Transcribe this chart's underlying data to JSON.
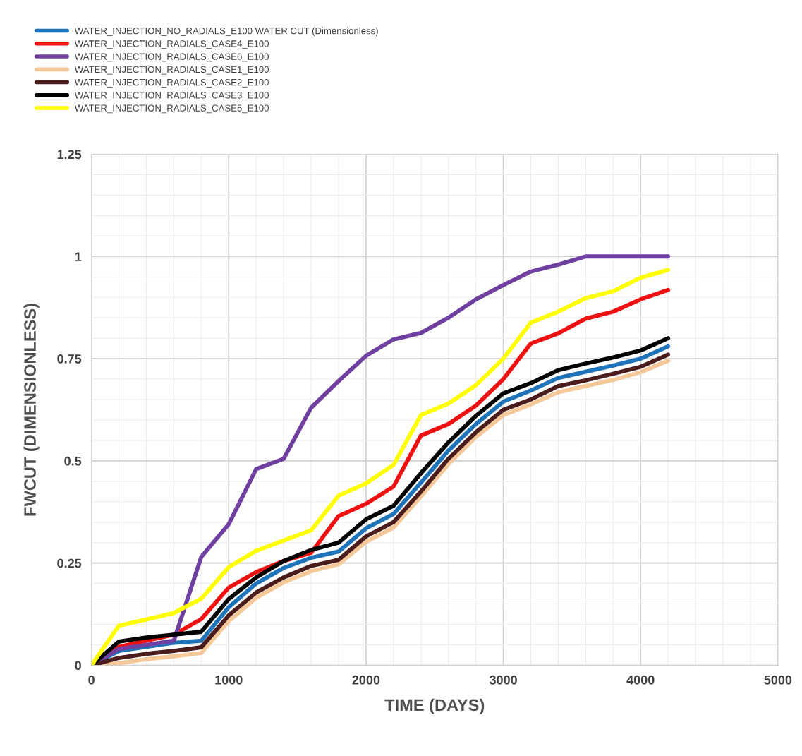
{
  "chart_data": {
    "type": "line",
    "xlabel": "TIME (DAYS)",
    "ylabel": "FWCUT (DIMENSIONLESS)",
    "x": [
      0,
      200,
      400,
      600,
      800,
      1000,
      1200,
      1400,
      1600,
      1800,
      2000,
      2200,
      2400,
      2600,
      2800,
      3000,
      3200,
      3400,
      3600,
      3800,
      4000,
      4200
    ],
    "xlim": [
      0,
      5000
    ],
    "xticks": [
      0,
      1000,
      2000,
      3000,
      4000,
      5000
    ],
    "ylim": [
      0,
      1.25
    ],
    "yticks": [
      0,
      0.25,
      0.5,
      0.75,
      1,
      1.25
    ],
    "grid": true,
    "legend": "top left",
    "marker": "none",
    "line_style": "solid",
    "series": [
      {
        "name": "WATER_INJECTION_NO_RADIALS_E100 WATER CUT (Dimensionless)",
        "color": "#1f73b8",
        "values": [
          0,
          0.035,
          0.045,
          0.055,
          0.06,
          0.142,
          0.2,
          0.238,
          0.263,
          0.278,
          0.335,
          0.37,
          0.447,
          0.525,
          0.59,
          0.645,
          0.672,
          0.703,
          0.718,
          0.733,
          0.75,
          0.78
        ]
      },
      {
        "name": "WATER_INJECTION_RADIALS_CASE4_E100",
        "color": "#ee1111",
        "values": [
          0,
          0.045,
          0.06,
          0.075,
          0.113,
          0.19,
          0.228,
          0.255,
          0.275,
          0.365,
          0.395,
          0.437,
          0.562,
          0.59,
          0.635,
          0.7,
          0.787,
          0.812,
          0.848,
          0.865,
          0.895,
          0.918
        ]
      },
      {
        "name": "WATER_INJECTION_RADIALS_CASE6_E100",
        "color": "#7040a0",
        "values": [
          0,
          0.04,
          0.05,
          0.06,
          0.265,
          0.345,
          0.48,
          0.505,
          0.63,
          0.695,
          0.757,
          0.797,
          0.813,
          0.85,
          0.895,
          0.93,
          0.963,
          0.98,
          1.0,
          1.0,
          1.0,
          1.0
        ]
      },
      {
        "name": "WATER_INJECTION_RADIALS_CASE1_E100",
        "color": "#f5c89a",
        "values": [
          0,
          0.005,
          0.015,
          0.022,
          0.03,
          0.108,
          0.165,
          0.203,
          0.23,
          0.247,
          0.302,
          0.337,
          0.413,
          0.492,
          0.558,
          0.612,
          0.638,
          0.668,
          0.683,
          0.698,
          0.717,
          0.745
        ]
      },
      {
        "name": "WATER_INJECTION_RADIALS_CASE2_E100",
        "color": "#4a1c1c",
        "values": [
          0,
          0.018,
          0.028,
          0.035,
          0.044,
          0.122,
          0.178,
          0.215,
          0.243,
          0.258,
          0.315,
          0.35,
          0.425,
          0.505,
          0.57,
          0.625,
          0.65,
          0.683,
          0.697,
          0.713,
          0.73,
          0.76
        ]
      },
      {
        "name": "WATER_INJECTION_RADIALS_CASE3_E100",
        "color": "#000000",
        "values": [
          0,
          0.058,
          0.068,
          0.075,
          0.082,
          0.162,
          0.215,
          0.255,
          0.282,
          0.3,
          0.357,
          0.39,
          0.47,
          0.545,
          0.61,
          0.665,
          0.69,
          0.722,
          0.738,
          0.753,
          0.77,
          0.8
        ]
      },
      {
        "name": "WATER_INJECTION_RADIALS_CASE5_E100",
        "color": "#ffff00",
        "values": [
          0,
          0.097,
          0.112,
          0.128,
          0.163,
          0.24,
          0.28,
          0.305,
          0.33,
          0.415,
          0.445,
          0.49,
          0.612,
          0.64,
          0.685,
          0.75,
          0.838,
          0.865,
          0.898,
          0.915,
          0.948,
          0.967
        ]
      }
    ]
  }
}
